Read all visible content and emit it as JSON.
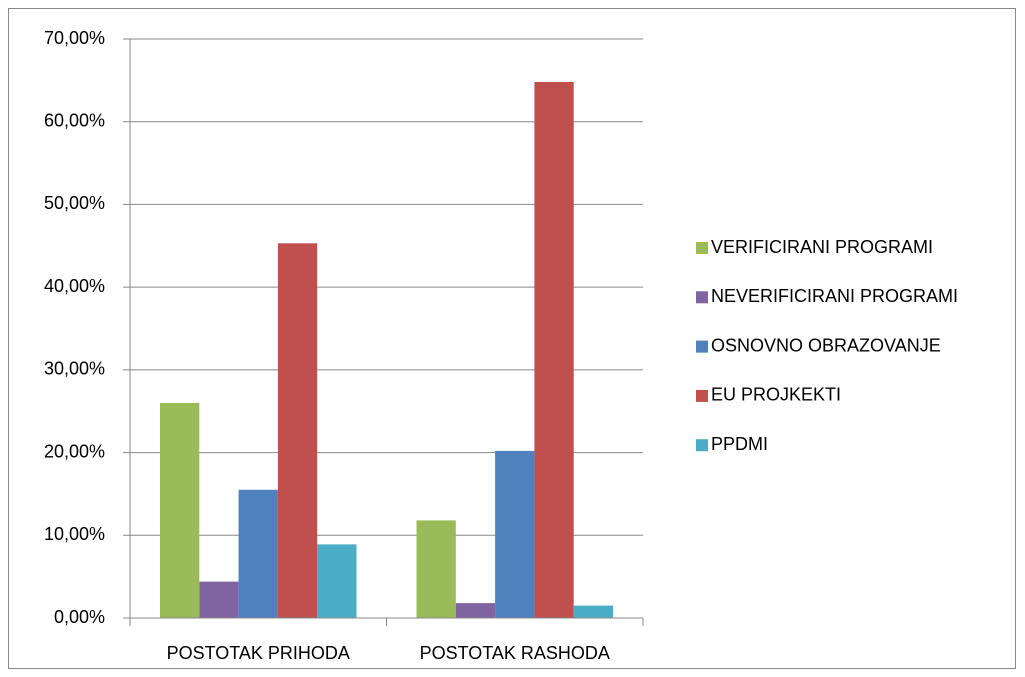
{
  "chart_data": {
    "type": "bar",
    "categories": [
      "POSTOTAK PRIHODA",
      "POSTOTAK RASHODA"
    ],
    "series": [
      {
        "name": "VERIFICIRANI PROGRAMI",
        "color": "#9bbb59",
        "values": [
          26.0,
          11.8
        ]
      },
      {
        "name": "NEVERIFICIRANI PROGRAMI",
        "color": "#8064a2",
        "values": [
          4.4,
          1.8
        ]
      },
      {
        "name": "OSNOVNO OBRAZOVANJE",
        "color": "#4f81bd",
        "values": [
          15.5,
          20.2
        ]
      },
      {
        "name": "EU PROJKEKTI",
        "color": "#c0504d",
        "values": [
          45.3,
          64.8
        ]
      },
      {
        "name": "PPDMI",
        "color": "#4bacc6",
        "values": [
          8.9,
          1.5
        ]
      }
    ],
    "ylim": [
      0,
      70
    ],
    "yticks": [
      {
        "value": 0,
        "label": "0,00%"
      },
      {
        "value": 10,
        "label": "10,00%"
      },
      {
        "value": 20,
        "label": "20,00%"
      },
      {
        "value": 30,
        "label": "30,00%"
      },
      {
        "value": 40,
        "label": "40,00%"
      },
      {
        "value": 50,
        "label": "50,00%"
      },
      {
        "value": 60,
        "label": "60,00%"
      },
      {
        "value": 70,
        "label": "70,00%"
      }
    ],
    "grid": true,
    "legend": "right"
  }
}
